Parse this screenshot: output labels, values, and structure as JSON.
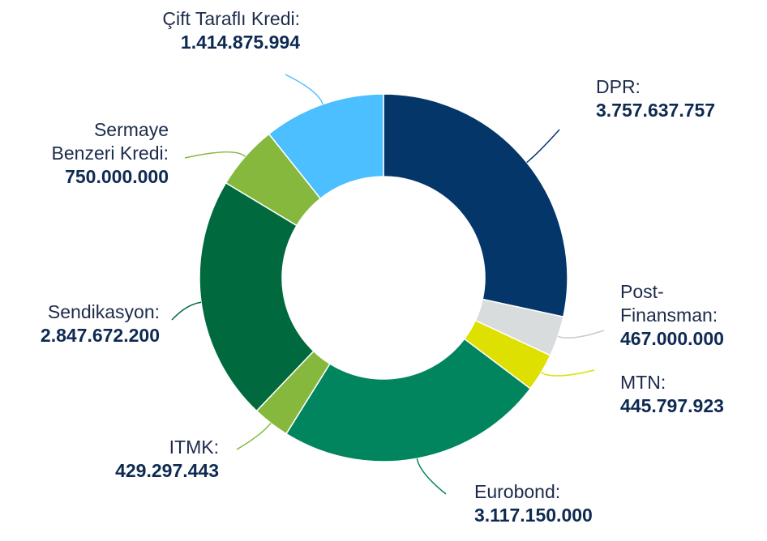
{
  "chart_data": {
    "type": "donut",
    "categories": [
      "DPR:",
      "Post-\nFinansman:",
      "MTN:",
      "Eurobond:",
      "ITMK:",
      "Sendikasyon:",
      "Sermaye\nBenzeri Kredi:",
      "Çift Taraflı Kredi:"
    ],
    "values": [
      3757637757,
      467000000,
      445797923,
      3117150000,
      429297443,
      2847672200,
      750000000,
      1414875994
    ],
    "value_labels": [
      "3.757.637.757",
      "467.000.000",
      "445.797.923",
      "3.117.150.000",
      "429.297.443",
      "2.847.672.200",
      "750.000.000",
      "1.414.875.994"
    ],
    "colors": [
      "#04366a",
      "#d9dcdc",
      "#dde000",
      "#00855f",
      "#86b83d",
      "#006a3e",
      "#86b83d",
      "#4bbfff"
    ]
  }
}
